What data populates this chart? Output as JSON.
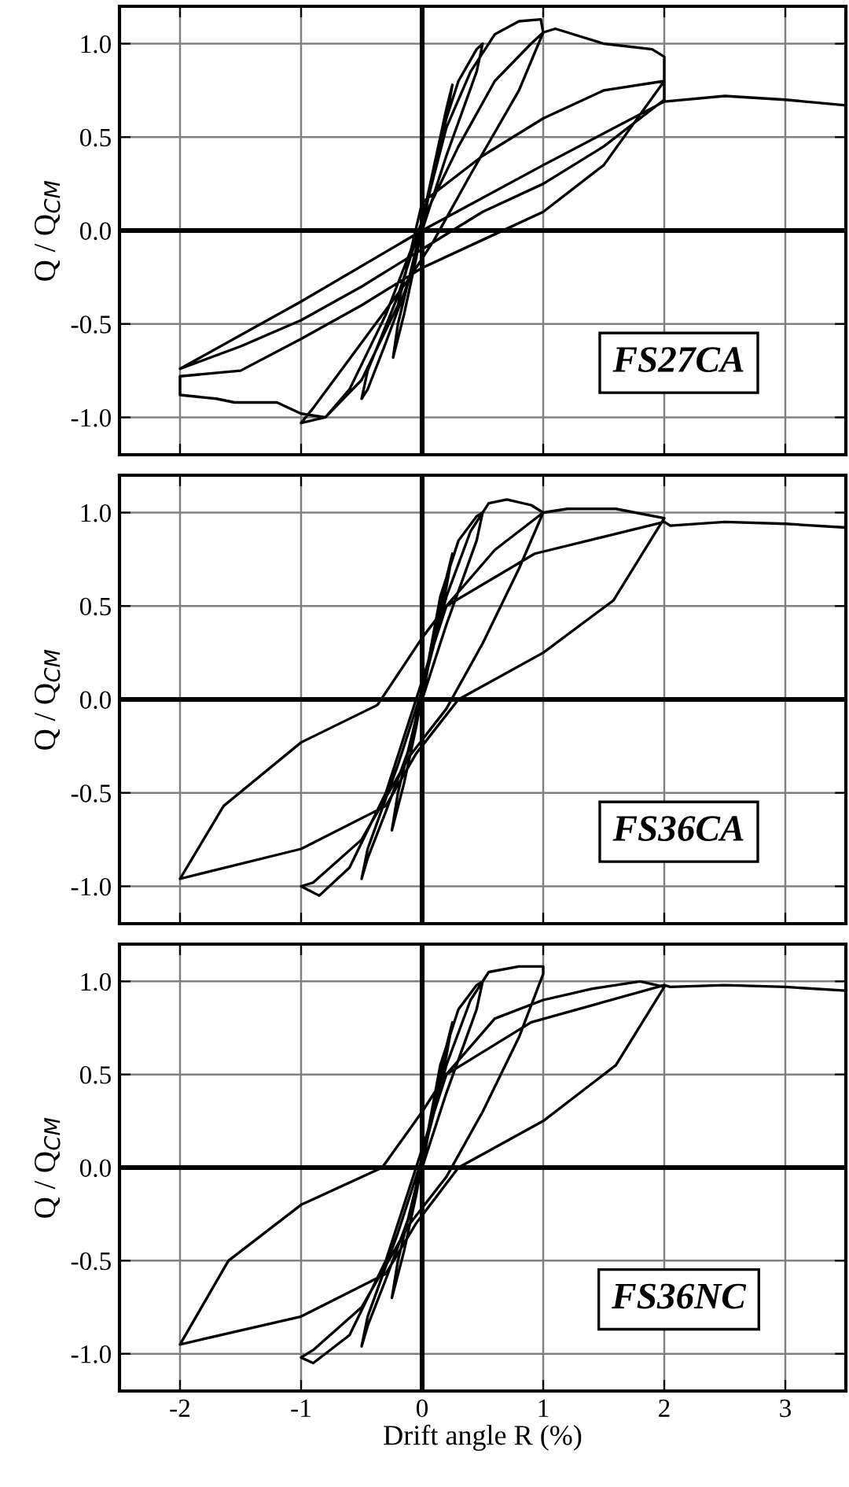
{
  "chart_data": [
    {
      "type": "line",
      "ylabel": "Q / Q$_{CM}$",
      "annotations": [
        "FS27CA"
      ],
      "xlim": [
        -2.5,
        3.5
      ],
      "ylim": [
        -1.2,
        1.2
      ],
      "xticks": [
        -2,
        -1,
        0,
        1,
        2,
        3
      ],
      "yticks": [
        {
          "value": -1.0,
          "label": "-1.0"
        },
        {
          "value": -0.5,
          "label": "-0.5"
        },
        {
          "value": 0.0,
          "label": "0.0"
        },
        {
          "value": 0.5,
          "label": "0.5"
        },
        {
          "value": 1.0,
          "label": "1.0"
        }
      ],
      "tick_labels": "y",
      "grid": true,
      "series": [
        {
          "color": "#000000",
          "x": [
            0,
            0.1,
            0.2,
            0.25,
            0.2,
            0.05,
            -0.05,
            -0.15,
            -0.24,
            -0.2,
            -0.05,
            0.05,
            0.15,
            0.3,
            0.45,
            0.5,
            0.45,
            0.2,
            0.0,
            -0.1,
            -0.3,
            -0.45,
            -0.5,
            -0.45,
            -0.2,
            0.0,
            0.2,
            0.4,
            0.6,
            0.8,
            0.98,
            1.0,
            0.8,
            0.4,
            0.1,
            -0.1,
            -0.5,
            -0.9,
            -1.0,
            -0.8,
            -0.6,
            -0.3,
            0.0,
            0.3,
            0.6,
            0.9,
            1.0,
            1.1,
            1.2,
            1.5,
            1.9,
            2.0,
            2.0,
            1.5,
            1.0,
            0.5,
            0.0,
            -0.5,
            -1.0,
            -1.5,
            -2.0,
            -2.0,
            -1.7,
            -1.55,
            -1.2,
            -1.0,
            -0.8,
            -0.5,
            -0.2,
            0.0,
            0.5,
            1.0,
            1.5,
            2.0,
            2.0,
            1.5,
            1.0,
            0.5,
            0.0,
            -0.5,
            -1.0,
            -1.5,
            -2.0,
            -1.0,
            0.0,
            1.0,
            2.0,
            2.5,
            3.0,
            3.5
          ],
          "values": [
            0,
            0.35,
            0.65,
            0.78,
            0.6,
            0.2,
            -0.15,
            -0.45,
            -0.68,
            -0.5,
            -0.1,
            0.2,
            0.5,
            0.8,
            0.97,
            1.0,
            0.85,
            0.4,
            0.0,
            -0.25,
            -0.6,
            -0.85,
            -0.9,
            -0.75,
            -0.35,
            0.05,
            0.55,
            0.85,
            1.05,
            1.12,
            1.13,
            1.06,
            0.75,
            0.3,
            -0.05,
            -0.25,
            -0.6,
            -0.95,
            -1.03,
            -1.0,
            -0.85,
            -0.45,
            0.05,
            0.45,
            0.8,
            1.0,
            1.06,
            1.08,
            1.06,
            1.0,
            0.97,
            0.93,
            0.8,
            0.35,
            0.1,
            -0.05,
            -0.2,
            -0.4,
            -0.58,
            -0.75,
            -0.78,
            -0.88,
            -0.9,
            -0.92,
            -0.92,
            -0.98,
            -1.0,
            -0.8,
            -0.4,
            0.15,
            0.4,
            0.6,
            0.75,
            0.8,
            0.7,
            0.45,
            0.25,
            0.1,
            -0.1,
            -0.3,
            -0.48,
            -0.62,
            -0.74,
            -0.38,
            0.0,
            0.35,
            0.69,
            0.72,
            0.7,
            0.67
          ]
        }
      ]
    },
    {
      "type": "line",
      "ylabel": "Q / Q$_{CM}$",
      "annotations": [
        "FS36CA"
      ],
      "xlim": [
        -2.5,
        3.5
      ],
      "ylim": [
        -1.2,
        1.2
      ],
      "xticks": [
        -2,
        -1,
        0,
        1,
        2,
        3
      ],
      "yticks": [
        {
          "value": -1.0,
          "label": "-1.0"
        },
        {
          "value": -0.5,
          "label": "-0.5"
        },
        {
          "value": 0.0,
          "label": "0.0"
        },
        {
          "value": 0.5,
          "label": "0.5"
        },
        {
          "value": 1.0,
          "label": "1.0"
        }
      ],
      "tick_labels": "y",
      "grid": true,
      "series": [
        {
          "color": "#000000",
          "x": [
            0,
            0.1,
            0.2,
            0.25,
            0.2,
            0.05,
            -0.05,
            -0.15,
            -0.25,
            -0.2,
            -0.05,
            0.05,
            0.15,
            0.3,
            0.45,
            0.5,
            0.45,
            0.2,
            0.0,
            -0.1,
            -0.3,
            -0.45,
            -0.5,
            -0.45,
            -0.2,
            0.0,
            0.2,
            0.4,
            0.55,
            0.7,
            0.9,
            1.0,
            0.8,
            0.5,
            0.2,
            -0.1,
            -0.5,
            -0.9,
            -1.0,
            -0.85,
            -0.6,
            -0.3,
            0.0,
            0.2,
            0.6,
            1.0,
            1.2,
            1.6,
            2.0,
            1.58,
            1.0,
            0.3,
            -0.05,
            -0.3,
            -1.0,
            -2.0,
            -1.64,
            -1.0,
            -0.37,
            0.0,
            0.2,
            0.93,
            2.0,
            2.05,
            2.5,
            3.0,
            3.5
          ],
          "values": [
            0,
            0.35,
            0.65,
            0.78,
            0.6,
            0.2,
            -0.15,
            -0.45,
            -0.7,
            -0.5,
            -0.1,
            0.2,
            0.55,
            0.85,
            0.98,
            1.0,
            0.85,
            0.4,
            0.0,
            -0.25,
            -0.6,
            -0.85,
            -0.96,
            -0.8,
            -0.35,
            0.05,
            0.55,
            0.9,
            1.05,
            1.07,
            1.04,
            1.0,
            0.7,
            0.3,
            -0.05,
            -0.3,
            -0.75,
            -0.98,
            -1.0,
            -1.05,
            -0.9,
            -0.5,
            0.1,
            0.5,
            0.8,
            1.0,
            1.02,
            1.02,
            0.97,
            0.53,
            0.25,
            0.0,
            -0.29,
            -0.57,
            -0.8,
            -0.96,
            -0.57,
            -0.23,
            -0.03,
            0.33,
            0.5,
            0.78,
            0.95,
            0.93,
            0.95,
            0.94,
            0.92
          ]
        }
      ]
    },
    {
      "type": "line",
      "xlabel": "Drift angle R (%)",
      "ylabel": "Q / Q$_{CM}$",
      "annotations": [
        "FS36NC"
      ],
      "xlim": [
        -2.5,
        3.5
      ],
      "ylim": [
        -1.2,
        1.2
      ],
      "xticks": [
        -2,
        -1,
        0,
        1,
        2,
        3
      ],
      "yticks": [
        {
          "value": -1.0,
          "label": "-1.0"
        },
        {
          "value": -0.5,
          "label": "-0.5"
        },
        {
          "value": 0.0,
          "label": "0.0"
        },
        {
          "value": 0.5,
          "label": "0.5"
        },
        {
          "value": 1.0,
          "label": "1.0"
        }
      ],
      "grid": true,
      "series": [
        {
          "color": "#000000",
          "x": [
            0,
            0.1,
            0.2,
            0.25,
            0.2,
            0.05,
            -0.05,
            -0.15,
            -0.25,
            -0.2,
            -0.05,
            0.05,
            0.15,
            0.3,
            0.45,
            0.5,
            0.45,
            0.2,
            0.0,
            -0.1,
            -0.3,
            -0.45,
            -0.5,
            -0.45,
            -0.2,
            0.0,
            0.2,
            0.4,
            0.55,
            0.8,
            1.0,
            1.0,
            0.8,
            0.5,
            0.2,
            -0.1,
            -0.5,
            -0.9,
            -1.0,
            -0.9,
            -0.6,
            -0.3,
            0.0,
            0.2,
            0.6,
            1.0,
            1.4,
            1.8,
            2.0,
            1.6,
            1.0,
            0.3,
            -0.05,
            -0.3,
            -1.0,
            -2.0,
            -1.6,
            -1.0,
            -0.33,
            0.0,
            0.2,
            0.9,
            2.0,
            2.05,
            2.5,
            3.0,
            3.5
          ],
          "values": [
            0,
            0.35,
            0.65,
            0.78,
            0.6,
            0.2,
            -0.15,
            -0.45,
            -0.7,
            -0.5,
            -0.1,
            0.2,
            0.55,
            0.85,
            0.98,
            1.0,
            0.85,
            0.4,
            0.0,
            -0.25,
            -0.6,
            -0.85,
            -0.96,
            -0.8,
            -0.35,
            0.05,
            0.55,
            0.9,
            1.05,
            1.08,
            1.08,
            1.04,
            0.7,
            0.3,
            -0.05,
            -0.3,
            -0.75,
            -0.98,
            -1.02,
            -1.05,
            -0.9,
            -0.5,
            0.1,
            0.5,
            0.8,
            0.9,
            0.96,
            1.0,
            0.97,
            0.55,
            0.25,
            0.0,
            -0.3,
            -0.57,
            -0.8,
            -0.95,
            -0.5,
            -0.2,
            0.0,
            0.3,
            0.5,
            0.78,
            0.98,
            0.97,
            0.98,
            0.97,
            0.95
          ]
        }
      ]
    }
  ]
}
